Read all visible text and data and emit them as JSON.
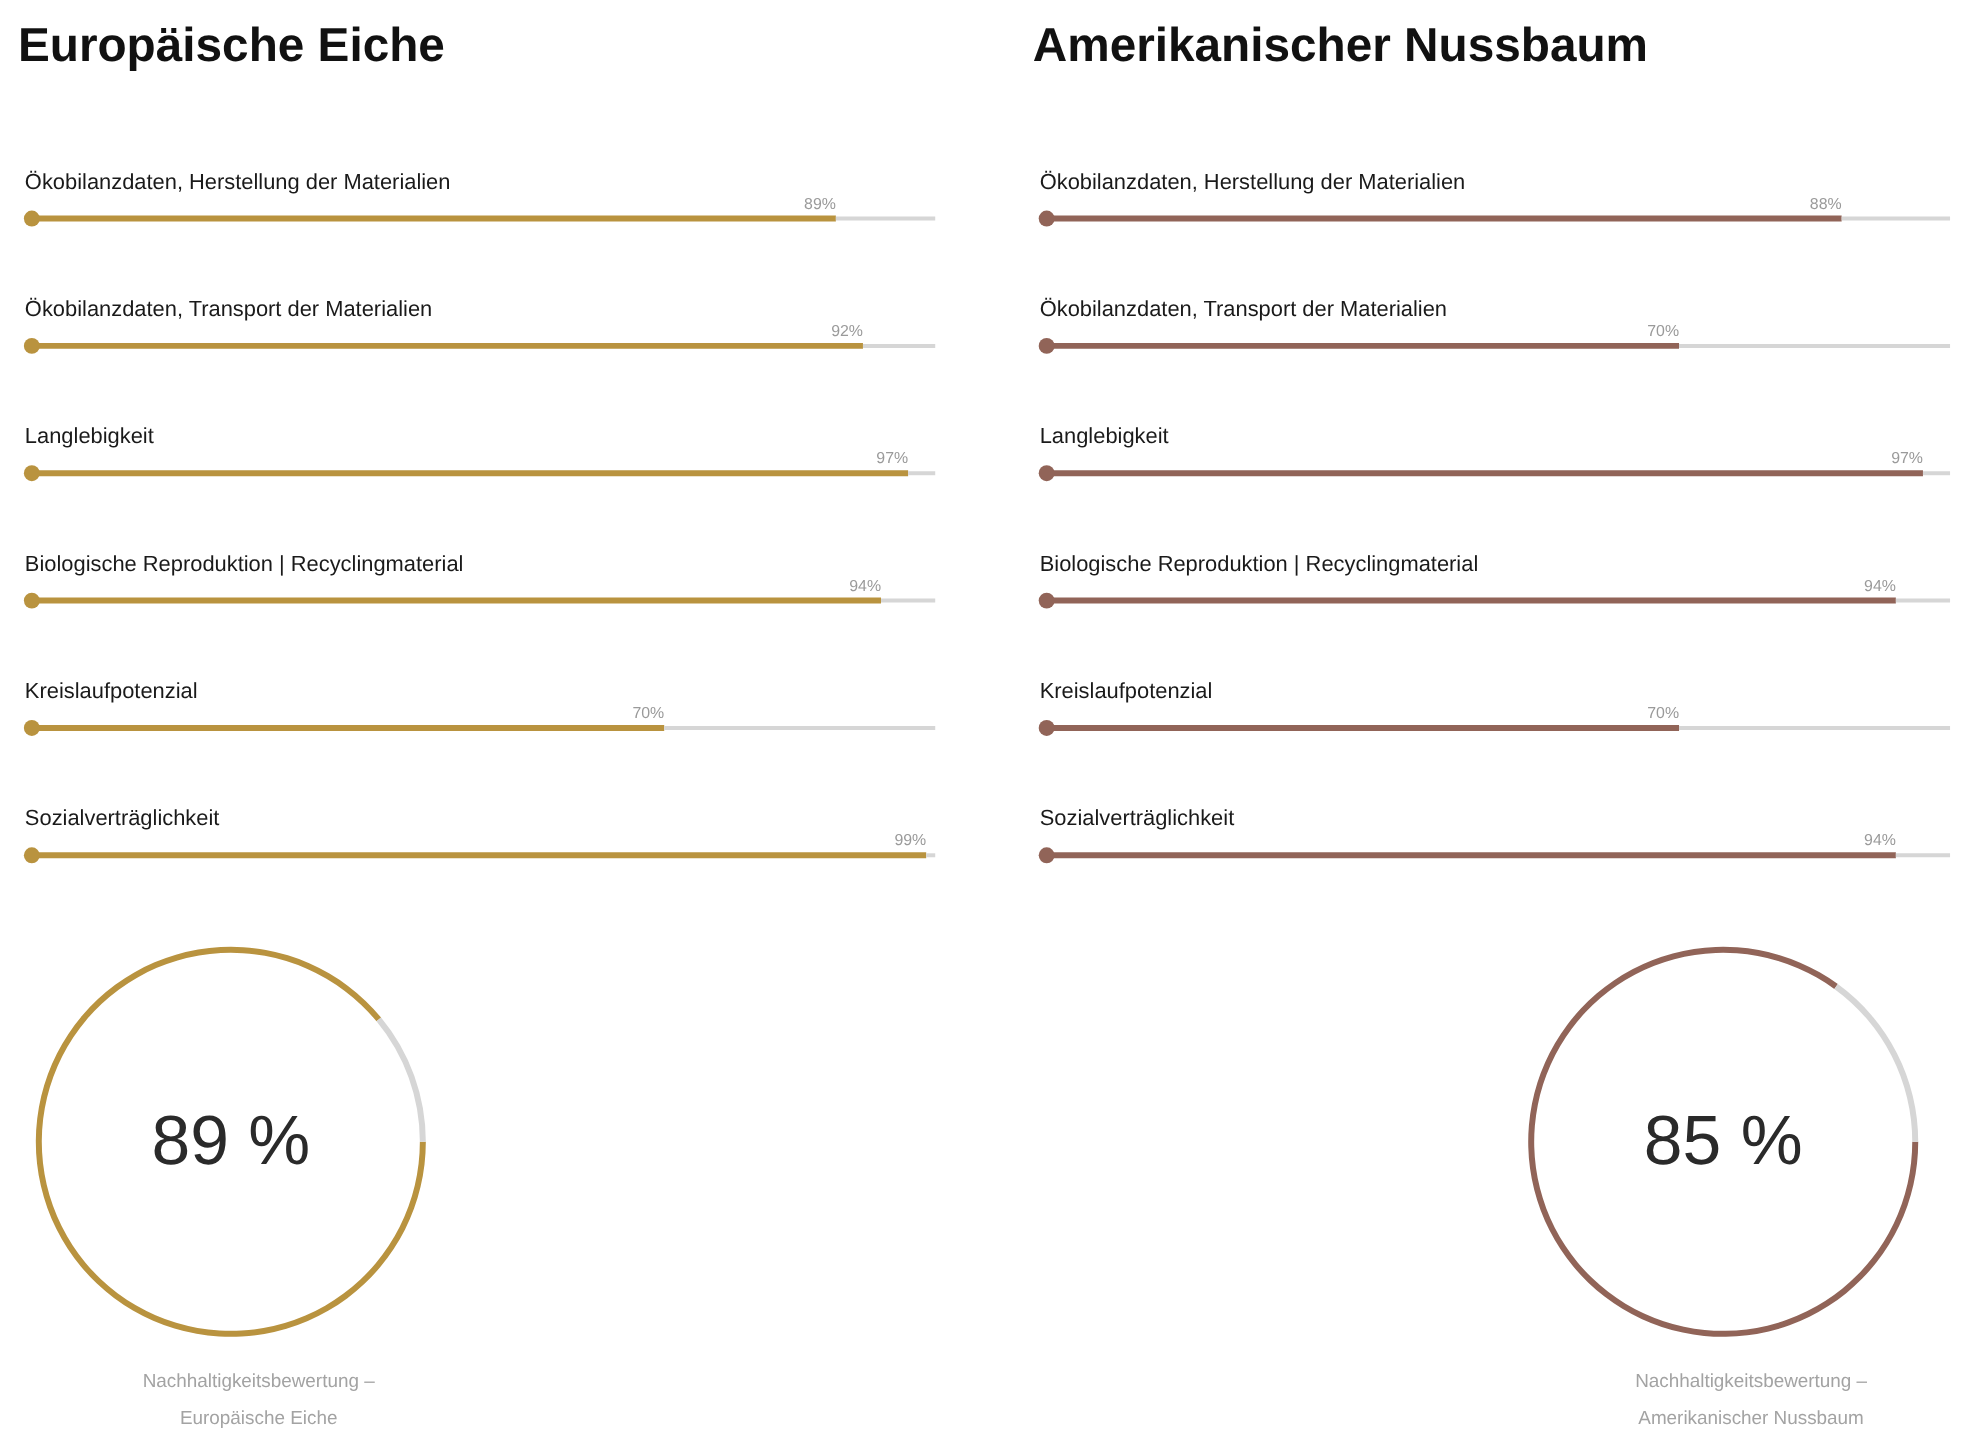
{
  "chart_data": [
    {
      "type": "bar",
      "orientation": "horizontal",
      "stacked": true,
      "title": "Europäische Eiche",
      "categories": [
        "Ökobilanzdaten, Herstellung der Materialien",
        "Ökobilanzdaten, Transport der Materialien",
        "Langlebigkeit",
        "Biologische Reproduktion | Recyclingmaterial",
        "Kreislaufpotenzial",
        "Sozialverträglichkeit"
      ],
      "tick_labels": "y",
      "series": [
        {
          "color": "#b9933f",
          "values": [
            89,
            92,
            97,
            94,
            70,
            99
          ],
          "value_labels": [
            "89%",
            "92%",
            "97%",
            "94%",
            "70%",
            "99%"
          ]
        },
        {
          "color": "#d6d6d6",
          "values": [
            11,
            8,
            3,
            6,
            30,
            1
          ]
        },
        {
          "type": "scatter",
          "marker": "circle",
          "color": "#b9933f",
          "values": [
            0,
            0,
            0,
            0,
            0,
            0
          ]
        }
      ]
    },
    {
      "type": "bar",
      "orientation": "horizontal",
      "stacked": true,
      "title": "Amerikanischer Nussbaum",
      "categories": [
        "Ökobilanzdaten, Herstellung der Materialien",
        "Ökobilanzdaten, Transport der Materialien",
        "Langlebigkeit",
        "Biologische Reproduktion | Recyclingmaterial",
        "Kreislaufpotenzial",
        "Sozialverträglichkeit"
      ],
      "tick_labels": "y",
      "series": [
        {
          "color": "#916458",
          "values": [
            88,
            70,
            97,
            94,
            70,
            94
          ],
          "value_labels": [
            "88%",
            "70%",
            "97%",
            "94%",
            "70%",
            "94%"
          ]
        },
        {
          "color": "#d6d6d6",
          "values": [
            12,
            30,
            3,
            6,
            30,
            6
          ]
        },
        {
          "type": "scatter",
          "marker": "circle",
          "color": "#916458",
          "values": [
            0,
            0,
            0,
            0,
            0,
            0
          ]
        }
      ]
    },
    {
      "type": "donut",
      "categories": [
        null,
        null
      ],
      "values": [
        89,
        11
      ],
      "colors": [
        "#b9933f",
        "#d6d6d6"
      ],
      "value_labels": [
        "89 %",
        null
      ],
      "annotations": [
        "Nachhaltigkeitsbewertung –\nEuropäische Eiche"
      ]
    },
    {
      "type": "donut",
      "categories": [
        null,
        null
      ],
      "values": [
        85,
        15
      ],
      "colors": [
        "#916458",
        "#d6d6d6"
      ],
      "value_labels": [
        "85 %",
        null
      ],
      "annotations": [
        "Nachhaltigkeitsbewertung –\nAmerikanischer Nussbaum"
      ]
    }
  ]
}
